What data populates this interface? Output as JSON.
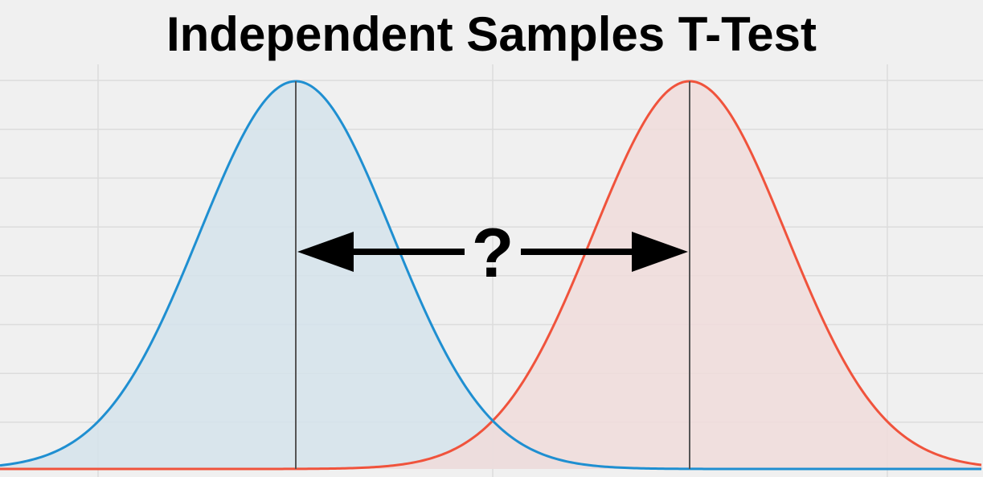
{
  "title": "Independent Samples T-Test",
  "annotation": "?",
  "colors": {
    "background": "#f0f0f0",
    "grid": "#dcdcdc",
    "group_a_line": "#1f8fd1",
    "group_a_fill": "#d5e3eb",
    "group_b_line": "#f0533c",
    "group_b_fill": "#f0dcdb",
    "mean_line": "#555555",
    "arrow": "#000000"
  }
}
